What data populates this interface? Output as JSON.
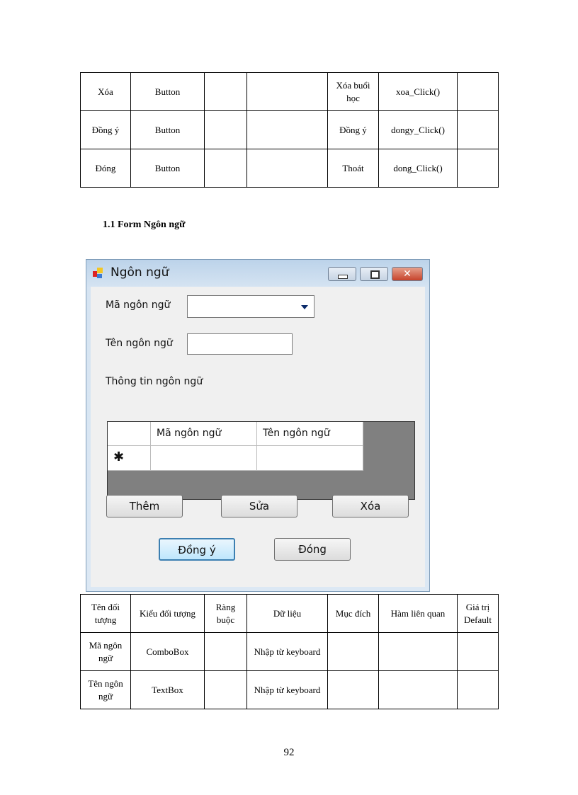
{
  "top_table": {
    "rows": [
      [
        "Xóa",
        "Button",
        "",
        "",
        "Xóa buổi học",
        "xoa_Click()",
        ""
      ],
      [
        "Đồng ý",
        "Button",
        "",
        "",
        "Đồng ý",
        "dongy_Click()",
        ""
      ],
      [
        "Đóng",
        "Button",
        "",
        "",
        "Thoát",
        "dong_Click()",
        ""
      ]
    ]
  },
  "section_heading": "1.1 Form  Ngôn ngữ",
  "window": {
    "title": "Ngôn ngữ",
    "ma_label": "Mã ngôn ngữ",
    "ten_label": "Tên ngôn ngữ",
    "group_label": "Thông tin ngôn ngữ",
    "grid_columns": [
      "Mã ngôn ngữ",
      "Tên ngôn ngữ"
    ],
    "new_row_marker": "✱",
    "buttons": {
      "them": "Thêm",
      "sua": "Sửa",
      "xoa": "Xóa",
      "dongy": "Đồng ý",
      "dong": "Đóng"
    }
  },
  "bottom_table": {
    "header": [
      "Tên đối tượng",
      "Kiểu đối tượng",
      "Ràng buộc",
      "Dữ liệu",
      "Mục đích",
      "Hàm liên quan",
      "Giá trị Default"
    ],
    "rows": [
      [
        "Mã ngôn ngữ",
        "ComboBox",
        "",
        "Nhập từ keyboard",
        "",
        "",
        ""
      ],
      [
        "Tên ngôn ngữ",
        "TextBox",
        "",
        "Nhập từ keyboard",
        "",
        "",
        ""
      ]
    ]
  },
  "page_number": "92"
}
